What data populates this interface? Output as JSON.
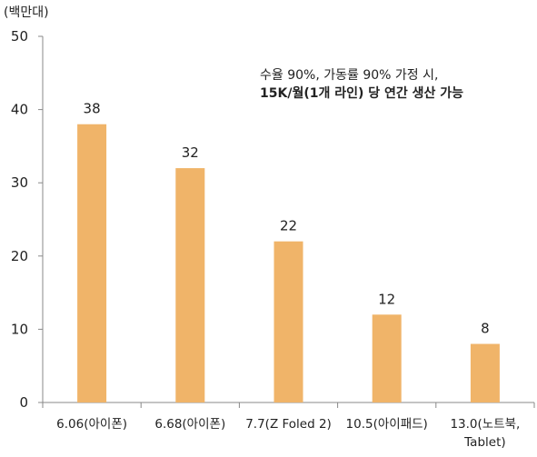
{
  "chart_data": {
    "type": "bar",
    "unit_label": "(백만대)",
    "categories": [
      "6.06(아이폰)",
      "6.68(아이폰)",
      "7.7(Z Foled 2)",
      "10.5(아이패드)",
      "13.0(노트북,\nTablet)"
    ],
    "values": [
      38,
      32,
      22,
      12,
      8
    ],
    "value_labels": [
      "38",
      "32",
      "22",
      "12",
      "8"
    ],
    "y_ticks": [
      "0",
      "10",
      "20",
      "30",
      "40",
      "50"
    ],
    "ylim": [
      0,
      50
    ],
    "bar_color": "#F0B469",
    "grid": false,
    "annotation": {
      "line1": "수율 90%, 가동률 90% 가정 시,",
      "line2": "15K/월(1개 라인) 당 연간 생산 가능"
    }
  }
}
